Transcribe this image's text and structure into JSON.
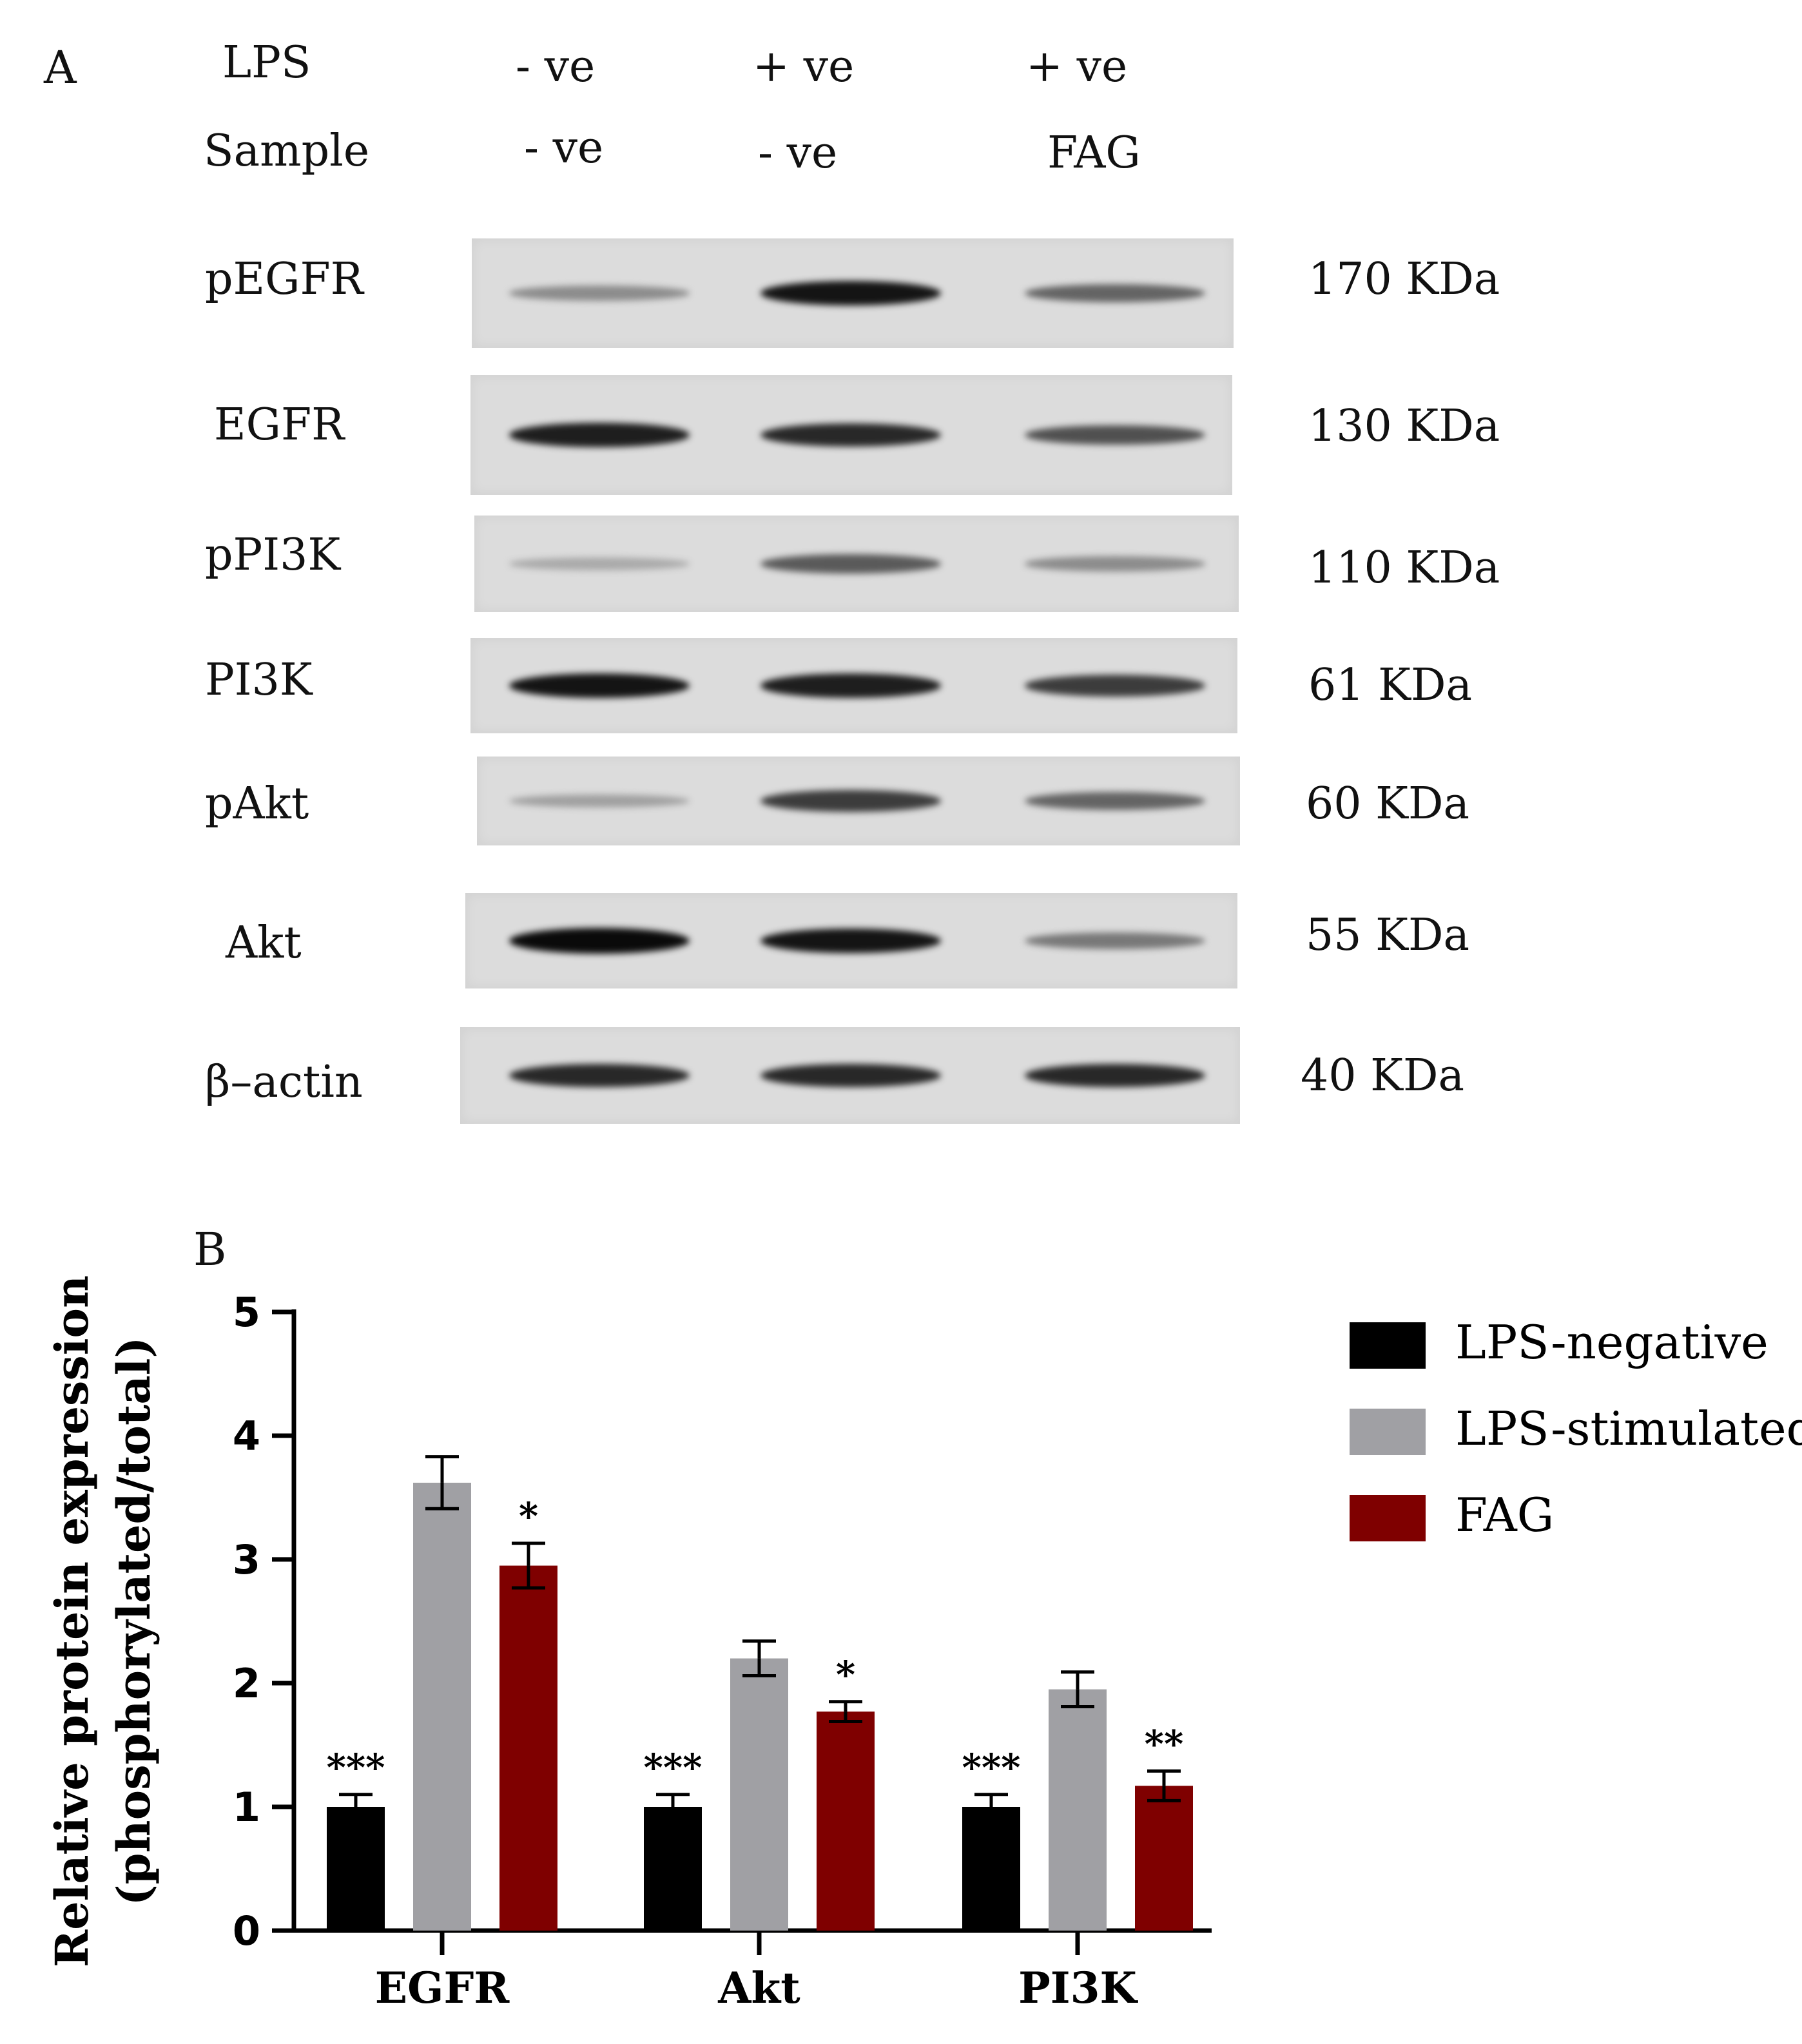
{
  "panel_a": {
    "letter": "A",
    "lps_label": "LPS",
    "sample_label": "Sample",
    "lanes": [
      {
        "lps": "- ve",
        "sample": "- ve"
      },
      {
        "lps": "+ ve",
        "sample": "- ve"
      },
      {
        "lps": "+ ve",
        "sample": "FAG"
      }
    ],
    "blots": [
      {
        "protein": "pEGFR",
        "kda": "170 KDa",
        "bands": [
          0.35,
          0.95,
          0.55
        ]
      },
      {
        "protein": "EGFR",
        "kda": "130 KDa",
        "bands": [
          0.9,
          0.85,
          0.65
        ]
      },
      {
        "protein": "pPI3K",
        "kda": "110 KDa",
        "bands": [
          0.2,
          0.6,
          0.35
        ]
      },
      {
        "protein": "PI3K",
        "kda": "61 KDa",
        "bands": [
          0.95,
          0.9,
          0.75
        ]
      },
      {
        "protein": "pAkt",
        "kda": "60 KDa",
        "bands": [
          0.25,
          0.75,
          0.55
        ]
      },
      {
        "protein": "Akt",
        "kda": "55 KDa",
        "bands": [
          1.0,
          0.95,
          0.45
        ]
      },
      {
        "protein": "β–actin",
        "kda": "40 KDa",
        "bands": [
          0.85,
          0.85,
          0.85
        ]
      }
    ]
  },
  "panel_b": {
    "letter": "B"
  },
  "chart_data": {
    "type": "bar",
    "categories": [
      "EGFR",
      "Akt",
      "PI3K"
    ],
    "ylabel_line1": "Relative protein expression",
    "ylabel_line2": "(phosphorylated/total)",
    "ylim": [
      0,
      5
    ],
    "yticks": [
      "0",
      "1",
      "2",
      "3",
      "4",
      "5"
    ],
    "legend_position": "right",
    "series": [
      {
        "name": "LPS-negative",
        "color": "#000000",
        "values": [
          1.0,
          1.0,
          1.0
        ],
        "errors": [
          0.1,
          0.1,
          0.1
        ],
        "annotations": [
          "***",
          "***",
          "***"
        ]
      },
      {
        "name": "LPS-stimulated",
        "color": "#a0a0a4",
        "values": [
          3.62,
          2.2,
          1.95
        ],
        "errors": [
          0.21,
          0.14,
          0.14
        ],
        "annotations": [
          "",
          "",
          ""
        ]
      },
      {
        "name": "FAG",
        "color": "#7f0000",
        "values": [
          2.95,
          1.77,
          1.17
        ],
        "errors": [
          0.18,
          0.08,
          0.12
        ],
        "annotations": [
          "*",
          "*",
          "**"
        ]
      }
    ]
  }
}
